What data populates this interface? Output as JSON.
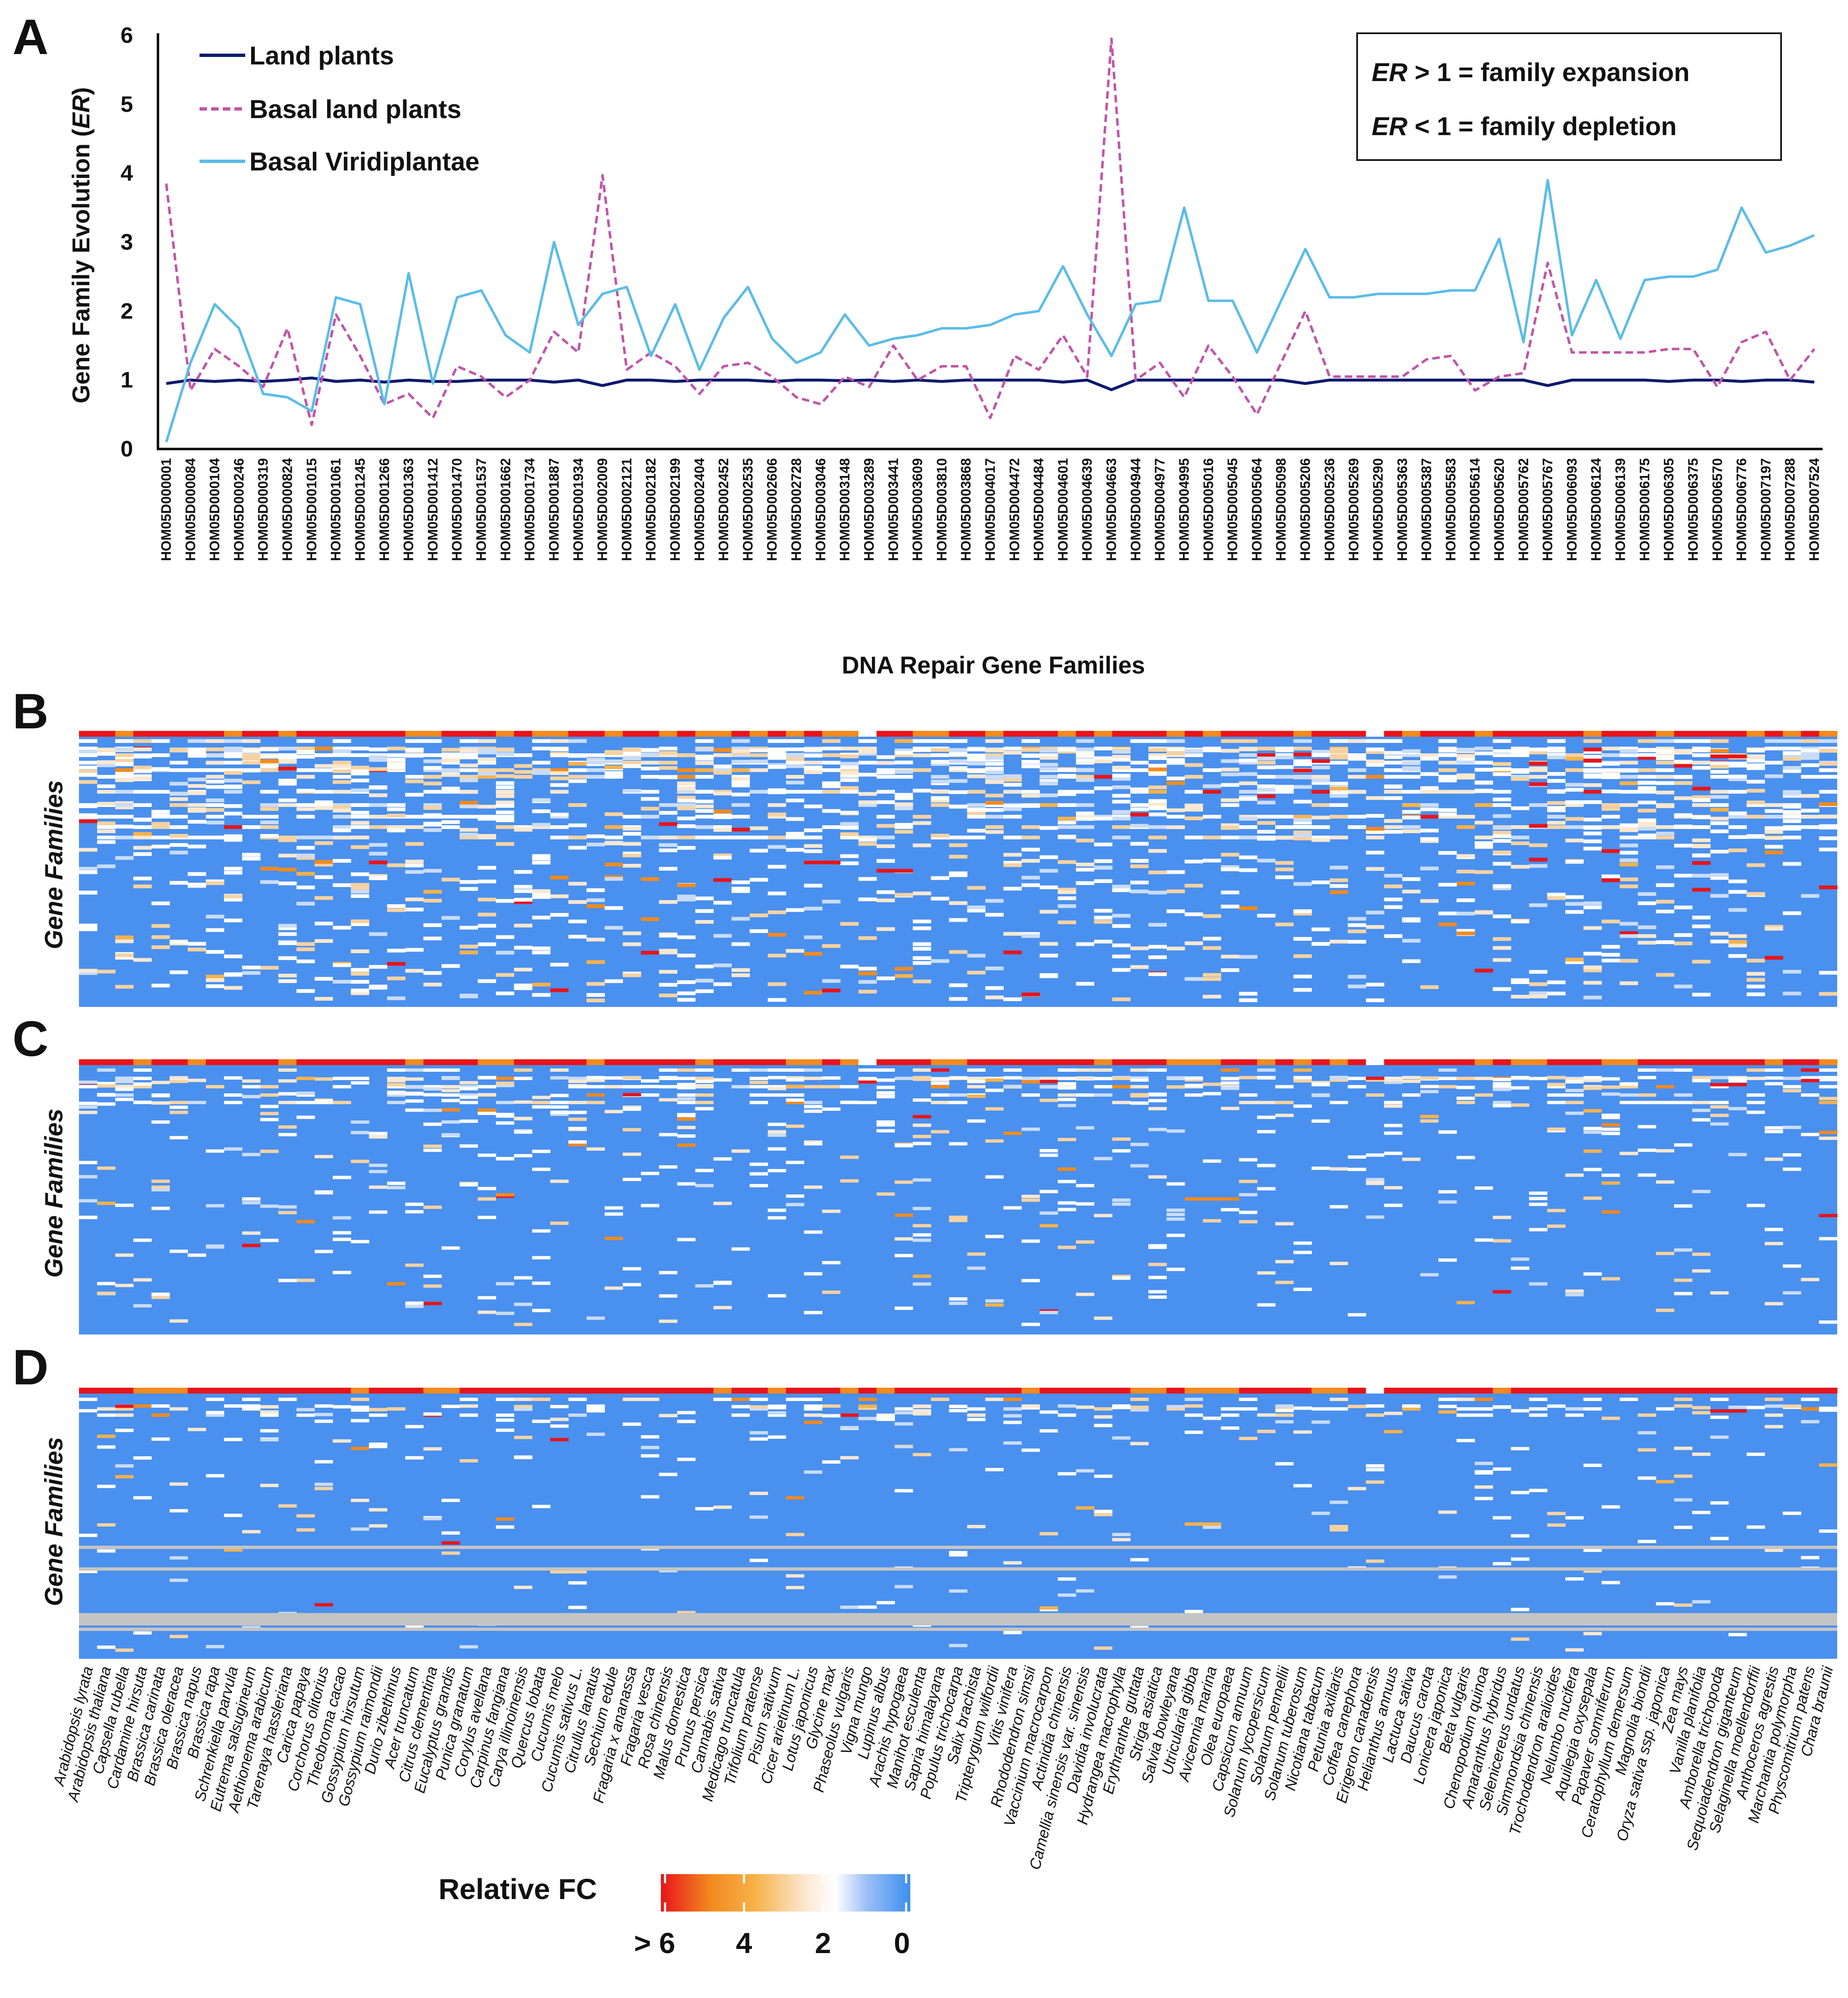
{
  "panels": {
    "a": "A",
    "b": "B",
    "c": "C",
    "d": "D"
  },
  "chart_data": [
    {
      "type": "line",
      "panel": "A",
      "title": "",
      "xlabel": "DNA Repair Gene Families",
      "ylabel": "Gene Family Evolution (ER)",
      "ylabel_prefix": "Gene Family Evolution (",
      "ylabel_italic": "ER",
      "ylabel_suffix": ")",
      "ylim": [
        0,
        6
      ],
      "yticks": [
        "0",
        "1",
        "2",
        "3",
        "4",
        "5",
        "6"
      ],
      "categories": [
        "HOM05D000001",
        "HOM05D000084",
        "HOM05D000104",
        "HOM05D000246",
        "HOM05D000319",
        "HOM05D000824",
        "HOM05D001015",
        "HOM05D001061",
        "HOM05D001245",
        "HOM05D001266",
        "HOM05D001363",
        "HOM05D001412",
        "HOM05D001470",
        "HOM05D001537",
        "HOM05D001662",
        "HOM05D001734",
        "HOM05D001887",
        "HOM05D001934",
        "HOM05D002009",
        "HOM05D002121",
        "HOM05D002182",
        "HOM05D002199",
        "HOM05D002404",
        "HOM05D002452",
        "HOM05D002535",
        "HOM05D002606",
        "HOM05D002728",
        "HOM05D003046",
        "HOM05D003148",
        "HOM05D003289",
        "HOM05D003441",
        "HOM05D003609",
        "HOM05D003810",
        "HOM05D003868",
        "HOM05D004017",
        "HOM05D004472",
        "HOM05D004484",
        "HOM05D004601",
        "HOM05D004639",
        "HOM05D004663",
        "HOM05D004944",
        "HOM05D004977",
        "HOM05D004995",
        "HOM05D005016",
        "HOM05D005045",
        "HOM05D005064",
        "HOM05D005098",
        "HOM05D005206",
        "HOM05D005236",
        "HOM05D005269",
        "HOM05D005290",
        "HOM05D005363",
        "HOM05D005387",
        "HOM05D005583",
        "HOM05D005614",
        "HOM05D005620",
        "HOM05D005762",
        "HOM05D005767",
        "HOM05D006093",
        "HOM05D006124",
        "HOM05D006139",
        "HOM05D006175",
        "HOM05D006305",
        "HOM05D006375",
        "HOM05D006570",
        "HOM05D006776",
        "HOM05D007197",
        "HOM05D007288",
        "HOM05D007524"
      ],
      "series": [
        {
          "name": "Land plants",
          "color": "#0d1a6e",
          "style": "solid",
          "values": [
            0.95,
            1.0,
            0.98,
            1.0,
            0.98,
            1.0,
            1.03,
            0.98,
            1.0,
            0.97,
            1.0,
            0.98,
            0.98,
            1.0,
            1.0,
            1.0,
            0.97,
            1.0,
            0.92,
            1.0,
            1.0,
            0.98,
            1.0,
            1.0,
            1.0,
            0.98,
            1.0,
            1.0,
            0.99,
            1.0,
            0.98,
            1.0,
            0.98,
            1.0,
            1.0,
            1.0,
            1.0,
            0.97,
            1.0,
            0.86,
            1.0,
            1.0,
            1.0,
            1.0,
            1.0,
            1.0,
            1.0,
            0.95,
            1.0,
            1.0,
            1.0,
            1.0,
            1.0,
            1.0,
            1.0,
            1.0,
            1.0,
            0.92,
            1.0,
            1.0,
            1.0,
            1.0,
            0.98,
            1.0,
            1.0,
            0.98,
            1.0,
            1.0,
            0.97
          ]
        },
        {
          "name": "Basal land plants",
          "color": "#c055a8",
          "style": "dashed",
          "values": [
            3.85,
            0.85,
            1.45,
            1.2,
            0.9,
            1.75,
            0.35,
            1.95,
            1.35,
            0.65,
            0.8,
            0.45,
            1.2,
            1.05,
            0.75,
            1.0,
            1.7,
            1.4,
            3.97,
            1.15,
            1.4,
            1.2,
            0.8,
            1.2,
            1.25,
            1.05,
            0.75,
            0.65,
            1.05,
            0.9,
            1.5,
            1.0,
            1.2,
            1.2,
            0.45,
            1.35,
            1.15,
            1.65,
            1.05,
            5.95,
            1.0,
            1.25,
            0.75,
            1.5,
            1.05,
            0.5,
            1.25,
            2.0,
            1.05,
            1.05,
            1.05,
            1.05,
            1.3,
            1.35,
            0.85,
            1.05,
            1.1,
            2.7,
            1.4,
            1.4,
            1.4,
            1.4,
            1.45,
            1.45,
            0.9,
            1.55,
            1.7,
            1.0,
            1.45
          ]
        },
        {
          "name": "Basal Viridiplantae",
          "color": "#5bbce8",
          "style": "solid",
          "values": [
            0.1,
            1.25,
            2.1,
            1.75,
            0.8,
            0.75,
            0.55,
            2.2,
            2.1,
            0.65,
            2.55,
            0.95,
            2.2,
            2.3,
            1.65,
            1.4,
            3.0,
            1.8,
            2.25,
            2.35,
            1.35,
            2.1,
            1.15,
            1.9,
            2.35,
            1.6,
            1.25,
            1.4,
            1.95,
            1.5,
            1.6,
            1.65,
            1.75,
            1.75,
            1.8,
            1.95,
            2.0,
            2.65,
            1.95,
            1.35,
            2.1,
            2.15,
            3.5,
            2.15,
            2.15,
            1.4,
            2.15,
            2.9,
            2.2,
            2.2,
            2.25,
            2.25,
            2.25,
            2.3,
            2.3,
            3.05,
            1.55,
            3.9,
            1.65,
            2.45,
            1.6,
            2.45,
            2.5,
            2.5,
            2.6,
            3.5,
            2.85,
            2.95,
            3.1
          ]
        }
      ],
      "legend": [
        {
          "label": "Land plants",
          "color": "#0d1a6e"
        },
        {
          "label": "Basal land plants",
          "color": "#c055a8"
        },
        {
          "label": "Basal Viridiplantae",
          "color": "#5bbce8"
        }
      ],
      "legend_position": "top-left",
      "annotation": {
        "line1": {
          "italic": "ER",
          "rest": " > 1 = family expansion"
        },
        "line2": {
          "italic": "ER",
          "rest": " < 1 = family depletion"
        }
      }
    },
    {
      "type": "heatmap",
      "panels": [
        "B",
        "C",
        "D"
      ],
      "ylabel": "Gene Families",
      "x_categories": [
        "Arabidopsis lyrata",
        "Arabidopsis thaliana",
        "Capsella rubella",
        "Cardamine hirsuta",
        "Brassica carinata",
        "Brassica oleracea",
        "Brassica napus",
        "Brassica rapa",
        "Schrenkiella parvula",
        "Eutrema salsugineum",
        "Aethionema arabicum",
        "Tarenaya hassleriana",
        "Carica papaya",
        "Corchorus olitorius",
        "Theobroma cacao",
        "Gossypium hirsutum",
        "Gossypium raimondii",
        "Durio zibethinus",
        "Acer truncatum",
        "Citrus clementina",
        "Eucalyptus grandis",
        "Punica granatum",
        "Corylus avellana",
        "Carpinus fangiana",
        "Carya illinoinensis",
        "Quercus lobata",
        "Cucumis melo",
        "Cucumis sativus L.",
        "Citrullus lanatus",
        "Sechium edule",
        "Fragaria x ananassa",
        "Fragaria vesca",
        "Rosa chinensis",
        "Malus domestica",
        "Prunus persica",
        "Cannabis sativa",
        "Medicago truncatula",
        "Trifolium pratense",
        "Pisum sativum",
        "Cicer arietinum L.",
        "Lotus japonicus",
        "Glycine max",
        "Phaseolus vulgaris",
        "Vigna mungo",
        "Lupinus albus",
        "Arachis hypogaea",
        "Manihot esculenta",
        "Sapria himalayana",
        "Populus trichocarpa",
        "Salix brachista",
        "Tripterygium wilfordii",
        "Vitis vinifera",
        "Rhododendron simsii",
        "Vaccinium macrocarpon",
        "Actinidia chinensis",
        "Camellia sinensis var. sinensis",
        "Davidia involucrata",
        "Hydrangea macrophylla",
        "Erythranthe guttata",
        "Striga asiatica",
        "Salvia bowleyana",
        "Utricularia gibba",
        "Avicennia marina",
        "Olea europaea",
        "Capsicum annuum",
        "Solanum lycopersicum",
        "Solanum pennellii",
        "Solanum tuberosum",
        "Nicotiana tabacum",
        "Petunia axillaris",
        "Coffea canephora",
        "Erigeron canadensis",
        "Helianthus annuus",
        "Lactuca sativa",
        "Daucus carota",
        "Lonicera japonica",
        "Beta vulgaris",
        "Chenopodium quinoa",
        "Amaranthus hybridus",
        "Selenicereus undatus",
        "Simmondsia chinensis",
        "Trochodendron aralioides",
        "Nelumbo nucifera",
        "Aquilegia oxysepala",
        "Papaver somniferum",
        "Ceratophyllum demersum",
        "Magnolia biondii",
        "Oryza sativa ssp. japonica",
        "Zea mays",
        "Vanilla planifolia",
        "Amborella trichopoda",
        "Sequoiadendron giganteum",
        "Selaginella moellendorffii",
        "Anthoceros agrestis",
        "Marchantia polymorpha",
        "Physcomitrium patens",
        "Chara braunii"
      ],
      "colorbar": {
        "title": "Relative FC",
        "ticks": [
          "> 6",
          "4",
          "2",
          "0"
        ],
        "colors": [
          "#e8141a",
          "#f28a1e",
          "#f7b24a",
          "#fbe8d0",
          "#ffffff",
          "#9ec2f5",
          "#3d8ef0"
        ]
      },
      "base_color": "#4a90ee",
      "missing_color": "#c4c4c4"
    }
  ]
}
